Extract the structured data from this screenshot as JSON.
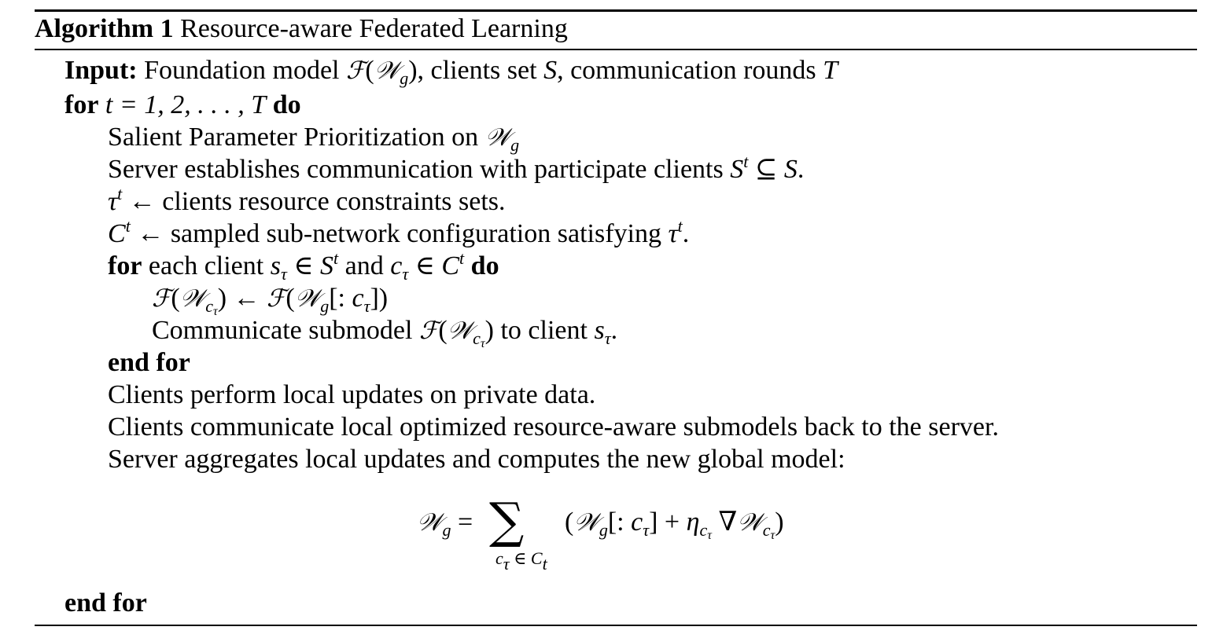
{
  "algorithm": {
    "label": "Algorithm 1",
    "title": "Resource-aware Federated Learning"
  },
  "input": {
    "keyword": "Input:",
    "text_a": "Foundation model ",
    "text_b": ", clients set ",
    "text_c": ", communication rounds "
  },
  "loop": {
    "for_kw": "for",
    "do_kw": "do",
    "range": "t = 1, 2, . . . , T",
    "end_for": "end for"
  },
  "steps": {
    "salient": "Salient Parameter Prioritization on ",
    "server_establish": "Server establishes communication with participate clients ",
    "resource_tail": "← clients resource constraints sets.",
    "config_tail": "← sampled sub-network configuration satisfying ",
    "each_client": "each client ",
    "and": " and ",
    "communicate": "Communicate submodel ",
    "to_client": " to client ",
    "local_updates": "Clients perform local updates on private data.",
    "communicate_back": "Clients communicate local optimized resource-aware submodels back to the server.",
    "aggregate": "Server aggregates local updates and computes the new global model:"
  },
  "equation": {
    "lhs": "𝒲g =",
    "sum_symbol": "∑",
    "sum_subscript": "cτ∈Ct",
    "rhs": "(𝒲g[: cτ] + ηcτ ∇𝒲cτ)"
  }
}
